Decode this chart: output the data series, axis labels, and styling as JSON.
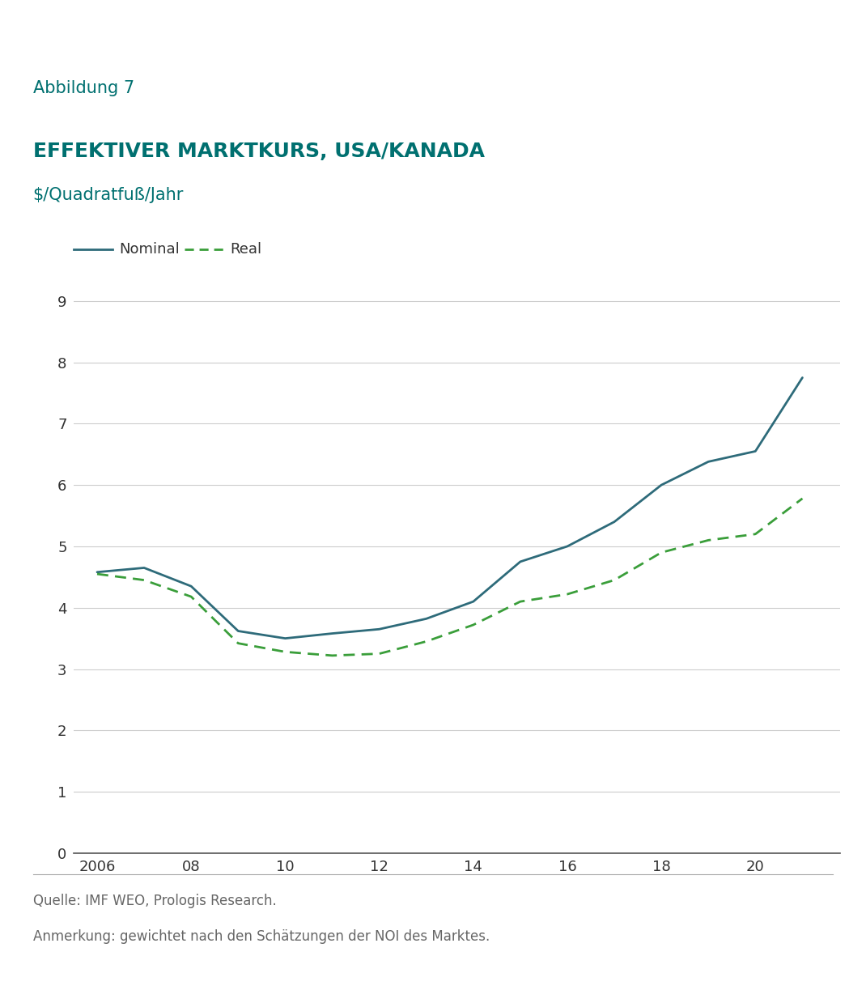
{
  "title_label": "Abbildung 7",
  "title_main": "EFFEKTIVER MARKTKURS, USA/KANADA",
  "title_sub": "$/Quadratfuß/Jahr",
  "header_bg_color": "#d9dbdd",
  "title_color": "#007070",
  "nominal_x": [
    2006,
    2007,
    2008,
    2009,
    2010,
    2011,
    2012,
    2013,
    2014,
    2015,
    2016,
    2017,
    2018,
    2019,
    2020,
    2021
  ],
  "nominal_y": [
    4.58,
    4.65,
    4.35,
    3.62,
    3.5,
    3.58,
    3.65,
    3.82,
    4.1,
    4.75,
    5.0,
    5.4,
    6.0,
    6.38,
    6.55,
    7.75
  ],
  "real_x": [
    2006,
    2007,
    2008,
    2009,
    2010,
    2011,
    2012,
    2013,
    2014,
    2015,
    2016,
    2017,
    2018,
    2019,
    2020,
    2021
  ],
  "real_y": [
    4.55,
    4.45,
    4.18,
    3.42,
    3.28,
    3.22,
    3.25,
    3.45,
    3.72,
    4.1,
    4.22,
    4.45,
    4.9,
    5.1,
    5.2,
    5.78
  ],
  "nominal_color": "#2e6b7a",
  "real_color": "#3a9e3a",
  "nominal_lw": 2.0,
  "real_lw": 2.0,
  "ylim": [
    0,
    9.5
  ],
  "yticks": [
    0,
    1,
    2,
    3,
    4,
    5,
    6,
    7,
    8,
    9
  ],
  "xticks": [
    2006,
    2008,
    2010,
    2012,
    2014,
    2016,
    2018,
    2020
  ],
  "xticklabels": [
    "2006",
    "08",
    "10",
    "12",
    "14",
    "16",
    "18",
    "20"
  ],
  "xlim": [
    2005.5,
    2021.8
  ],
  "legend_nominal": "Nominal",
  "legend_real": "Real",
  "source_text": "Quelle: IMF WEO, Prologis Research.",
  "note_text": "Anmerkung: gewichtet nach den Schätzungen der NOI des Marktes.",
  "footer_text_color": "#666666",
  "grid_color": "#cccccc",
  "bg_color": "#ffffff",
  "separator_color": "#aaaaaa"
}
